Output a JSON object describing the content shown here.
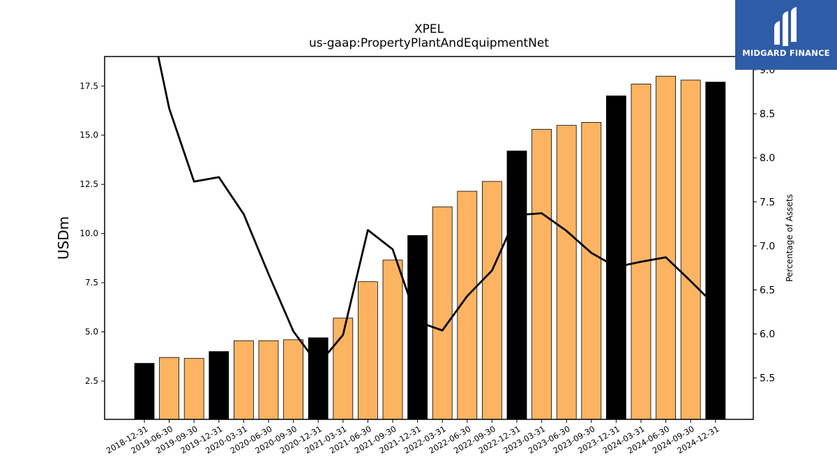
{
  "brand": {
    "name": "MIDGARD FINANCE"
  },
  "chart_data": {
    "type": "bar",
    "title": "XPEL",
    "subtitle": "us-gaap:PropertyPlantAndEquipmentNet",
    "ylabel": "USDm",
    "y2label": "Percentage of Assets",
    "categories": [
      "2018-12-31",
      "2019-06-30",
      "2019-09-30",
      "2019-12-31",
      "2020-03-31",
      "2020-06-30",
      "2020-09-30",
      "2020-12-31",
      "2021-03-31",
      "2021-06-30",
      "2021-09-30",
      "2021-12-31",
      "2022-03-31",
      "2022-06-30",
      "2022-09-30",
      "2022-12-31",
      "2023-03-31",
      "2023-06-30",
      "2023-09-30",
      "2023-12-31",
      "2024-03-31",
      "2024-06-30",
      "2024-09-30",
      "2024-12-31"
    ],
    "series": [
      {
        "type": "bar",
        "values": [
          3.4,
          3.7,
          3.65,
          4.0,
          4.55,
          4.55,
          4.6,
          4.7,
          5.7,
          7.55,
          8.65,
          9.9,
          11.35,
          12.15,
          12.65,
          14.2,
          15.3,
          15.5,
          15.65,
          17.0,
          17.6,
          18.0,
          17.8,
          17.7
        ],
        "colors": [
          "black",
          "orange",
          "orange",
          "black",
          "orange",
          "orange",
          "orange",
          "black",
          "orange",
          "orange",
          "orange",
          "black",
          "orange",
          "orange",
          "orange",
          "black",
          "orange",
          "orange",
          "orange",
          "black",
          "orange",
          "orange",
          "orange",
          "black"
        ]
      },
      {
        "type": "line",
        "axis": "right",
        "values": [
          9.9,
          8.56,
          7.73,
          7.78,
          7.36,
          6.68,
          6.03,
          5.65,
          5.99,
          7.18,
          6.96,
          6.14,
          6.04,
          6.43,
          6.72,
          7.35,
          7.37,
          7.17,
          6.92,
          6.76,
          6.82,
          6.87,
          6.6,
          6.32
        ]
      }
    ],
    "ylim": [
      0.55,
      19.0
    ],
    "y2lim": [
      5.03,
      9.15
    ],
    "yticks": [
      2.5,
      5.0,
      7.5,
      10.0,
      12.5,
      15.0,
      17.5
    ],
    "y2ticks": [
      5.5,
      6.0,
      6.5,
      7.0,
      7.5,
      8.0,
      8.5,
      9.0
    ],
    "colors": {
      "annual_bar": "#000000",
      "quarter_bar": "#fdb462",
      "line": "#000000"
    },
    "grid": false,
    "legend": "none"
  }
}
